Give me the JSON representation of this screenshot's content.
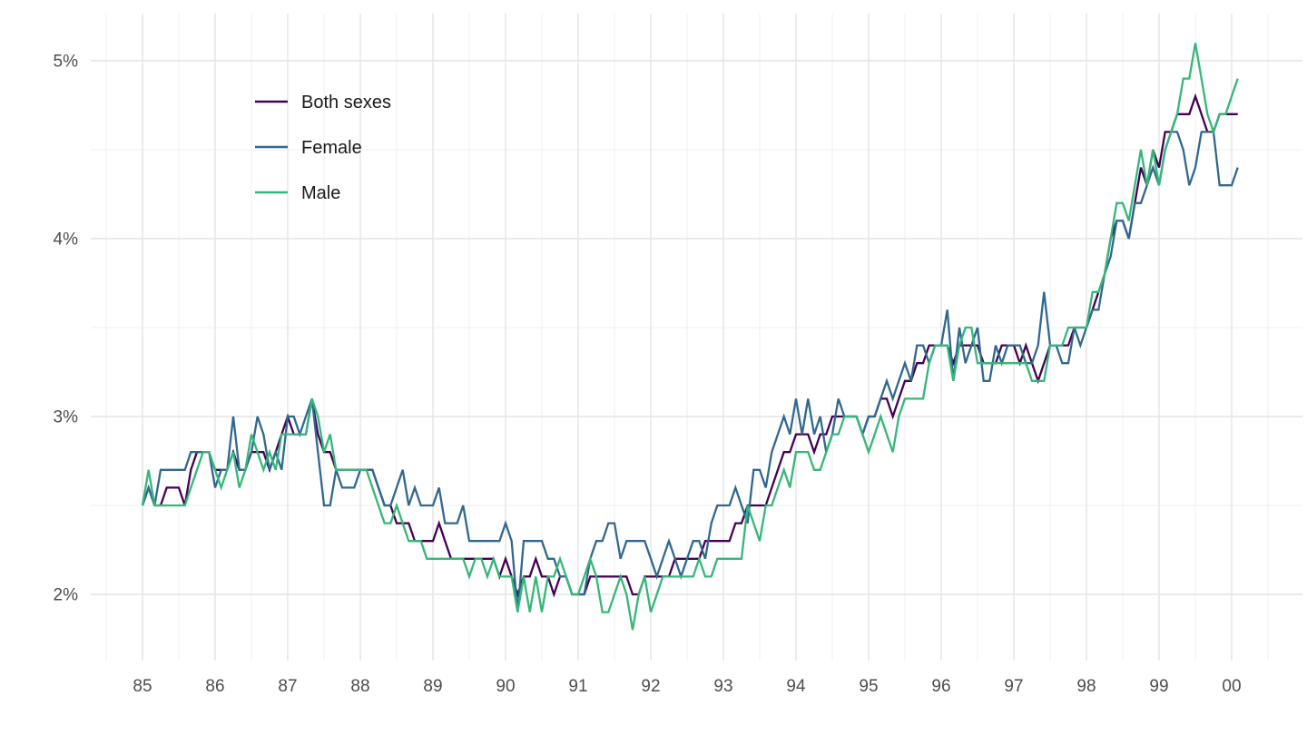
{
  "chart_data": {
    "type": "line",
    "title": "",
    "xlabel": "",
    "ylabel": "",
    "unit": "%",
    "x_start_year": 1985,
    "x_frequency": "monthly",
    "x_tick_labels": [
      "85",
      "86",
      "87",
      "88",
      "89",
      "90",
      "91",
      "92",
      "93",
      "94",
      "95",
      "96",
      "97",
      "98",
      "99",
      "00"
    ],
    "y_tick_labels": [
      "2%",
      "3%",
      "4%",
      "5%"
    ],
    "y_tick_values": [
      2,
      3,
      4,
      5
    ],
    "y_minor_values": [
      2.5,
      3.5,
      4.5
    ],
    "ylim": [
      1.6,
      5.3
    ],
    "grid": "on",
    "legend_position": "inside-top-left",
    "series": [
      {
        "name": "Both sexes",
        "color": "#440154",
        "values": [
          2.5,
          2.6,
          2.5,
          2.5,
          2.6,
          2.6,
          2.6,
          2.5,
          2.7,
          2.8,
          2.8,
          2.8,
          2.7,
          2.7,
          2.7,
          2.8,
          2.7,
          2.7,
          2.8,
          2.8,
          2.8,
          2.7,
          2.8,
          2.9,
          3.0,
          2.9,
          2.9,
          2.9,
          3.1,
          2.9,
          2.8,
          2.8,
          2.7,
          2.7,
          2.7,
          2.7,
          2.7,
          2.7,
          2.7,
          2.6,
          2.5,
          2.5,
          2.4,
          2.4,
          2.4,
          2.3,
          2.3,
          2.3,
          2.3,
          2.4,
          2.3,
          2.2,
          2.2,
          2.2,
          2.2,
          2.2,
          2.2,
          2.2,
          2.2,
          2.1,
          2.2,
          2.1,
          2.0,
          2.1,
          2.1,
          2.2,
          2.1,
          2.1,
          2.0,
          2.1,
          2.1,
          2.0,
          2.0,
          2.0,
          2.1,
          2.1,
          2.1,
          2.1,
          2.1,
          2.1,
          2.1,
          2.0,
          2.0,
          2.1,
          2.1,
          2.1,
          2.1,
          2.1,
          2.2,
          2.2,
          2.2,
          2.2,
          2.2,
          2.3,
          2.3,
          2.3,
          2.3,
          2.3,
          2.4,
          2.4,
          2.5,
          2.5,
          2.5,
          2.5,
          2.6,
          2.7,
          2.8,
          2.8,
          2.9,
          2.9,
          2.9,
          2.8,
          2.9,
          2.9,
          3.0,
          3.0,
          3.0,
          3.0,
          3.0,
          2.9,
          3.0,
          3.0,
          3.1,
          3.1,
          3.0,
          3.1,
          3.2,
          3.2,
          3.3,
          3.3,
          3.4,
          3.4,
          3.4,
          3.4,
          3.3,
          3.4,
          3.4,
          3.4,
          3.4,
          3.3,
          3.3,
          3.3,
          3.4,
          3.4,
          3.4,
          3.3,
          3.4,
          3.3,
          3.2,
          3.3,
          3.4,
          3.4,
          3.4,
          3.4,
          3.5,
          3.5,
          3.5,
          3.6,
          3.7,
          3.8,
          4.0,
          4.1,
          4.1,
          4.0,
          4.2,
          4.4,
          4.3,
          4.5,
          4.4,
          4.6,
          4.6,
          4.7,
          4.7,
          4.7,
          4.8,
          4.7,
          4.6,
          4.6,
          4.7,
          4.7,
          4.7,
          4.7
        ]
      },
      {
        "name": "Female",
        "color": "#31688E",
        "values": [
          2.5,
          2.6,
          2.5,
          2.7,
          2.7,
          2.7,
          2.7,
          2.7,
          2.8,
          2.8,
          2.8,
          2.8,
          2.6,
          2.7,
          2.7,
          3.0,
          2.7,
          2.7,
          2.8,
          3.0,
          2.9,
          2.7,
          2.8,
          2.7,
          3.0,
          3.0,
          2.9,
          3.0,
          3.1,
          2.8,
          2.5,
          2.5,
          2.7,
          2.6,
          2.6,
          2.6,
          2.7,
          2.7,
          2.7,
          2.6,
          2.5,
          2.5,
          2.6,
          2.7,
          2.5,
          2.6,
          2.5,
          2.5,
          2.5,
          2.6,
          2.4,
          2.4,
          2.4,
          2.5,
          2.3,
          2.3,
          2.3,
          2.3,
          2.3,
          2.3,
          2.4,
          2.3,
          1.9,
          2.3,
          2.3,
          2.3,
          2.3,
          2.2,
          2.2,
          2.1,
          2.1,
          2.0,
          2.0,
          2.0,
          2.2,
          2.3,
          2.3,
          2.4,
          2.4,
          2.2,
          2.3,
          2.3,
          2.3,
          2.3,
          2.2,
          2.1,
          2.2,
          2.3,
          2.2,
          2.1,
          2.2,
          2.3,
          2.3,
          2.2,
          2.4,
          2.5,
          2.5,
          2.5,
          2.6,
          2.5,
          2.4,
          2.7,
          2.7,
          2.6,
          2.8,
          2.9,
          3.0,
          2.9,
          3.1,
          2.9,
          3.1,
          2.9,
          3.0,
          2.8,
          2.9,
          3.1,
          3.0,
          3.0,
          3.0,
          2.9,
          3.0,
          3.0,
          3.1,
          3.2,
          3.1,
          3.2,
          3.3,
          3.2,
          3.4,
          3.4,
          3.3,
          3.4,
          3.4,
          3.6,
          3.2,
          3.5,
          3.3,
          3.4,
          3.5,
          3.2,
          3.2,
          3.4,
          3.3,
          3.4,
          3.4,
          3.4,
          3.3,
          3.3,
          3.4,
          3.7,
          3.4,
          3.4,
          3.3,
          3.3,
          3.5,
          3.4,
          3.5,
          3.6,
          3.6,
          3.8,
          3.9,
          4.1,
          4.1,
          4.0,
          4.2,
          4.2,
          4.3,
          4.4,
          4.3,
          4.5,
          4.6,
          4.6,
          4.5,
          4.3,
          4.4,
          4.6,
          4.6,
          4.6,
          4.3,
          4.3,
          4.3,
          4.4
        ]
      },
      {
        "name": "Male",
        "color": "#35B779",
        "values": [
          2.5,
          2.7,
          2.5,
          2.5,
          2.5,
          2.5,
          2.5,
          2.5,
          2.6,
          2.7,
          2.8,
          2.8,
          2.7,
          2.6,
          2.7,
          2.8,
          2.6,
          2.7,
          2.9,
          2.8,
          2.7,
          2.8,
          2.7,
          2.9,
          2.9,
          2.9,
          2.9,
          2.9,
          3.1,
          3.0,
          2.8,
          2.9,
          2.7,
          2.7,
          2.7,
          2.7,
          2.7,
          2.7,
          2.6,
          2.5,
          2.4,
          2.4,
          2.5,
          2.4,
          2.3,
          2.3,
          2.3,
          2.2,
          2.2,
          2.2,
          2.2,
          2.2,
          2.2,
          2.2,
          2.1,
          2.2,
          2.2,
          2.1,
          2.2,
          2.1,
          2.1,
          2.1,
          1.9,
          2.1,
          1.9,
          2.1,
          1.9,
          2.1,
          2.1,
          2.2,
          2.1,
          2.0,
          2.0,
          2.1,
          2.2,
          2.1,
          1.9,
          1.9,
          2.0,
          2.1,
          2.0,
          1.8,
          2.0,
          2.1,
          1.9,
          2.0,
          2.1,
          2.1,
          2.1,
          2.1,
          2.1,
          2.1,
          2.2,
          2.1,
          2.1,
          2.2,
          2.2,
          2.2,
          2.2,
          2.2,
          2.5,
          2.4,
          2.3,
          2.5,
          2.5,
          2.6,
          2.7,
          2.6,
          2.8,
          2.8,
          2.8,
          2.7,
          2.7,
          2.8,
          2.9,
          2.9,
          3.0,
          3.0,
          3.0,
          2.9,
          2.8,
          2.9,
          3.0,
          2.9,
          2.8,
          3.0,
          3.1,
          3.1,
          3.1,
          3.1,
          3.3,
          3.4,
          3.4,
          3.4,
          3.2,
          3.4,
          3.5,
          3.5,
          3.3,
          3.3,
          3.3,
          3.3,
          3.3,
          3.3,
          3.3,
          3.3,
          3.3,
          3.2,
          3.2,
          3.2,
          3.4,
          3.4,
          3.4,
          3.5,
          3.5,
          3.5,
          3.5,
          3.7,
          3.7,
          3.8,
          4.0,
          4.2,
          4.2,
          4.1,
          4.3,
          4.5,
          4.3,
          4.5,
          4.3,
          4.5,
          4.6,
          4.7,
          4.9,
          4.9,
          5.1,
          4.9,
          4.7,
          4.6,
          4.7,
          4.7,
          4.8,
          4.9
        ]
      }
    ]
  },
  "legend": {
    "items": [
      {
        "label": "Both sexes",
        "color": "#440154"
      },
      {
        "label": "Female",
        "color": "#31688E"
      },
      {
        "label": "Male",
        "color": "#35B779"
      }
    ]
  },
  "style": {
    "background": "#FFFFFF",
    "grid_major_color": "#E4E4E4",
    "grid_minor_color": "#EFEFEF",
    "axis_text_color": "#4D4D4D",
    "legend_text_color": "#1A1A1A"
  }
}
